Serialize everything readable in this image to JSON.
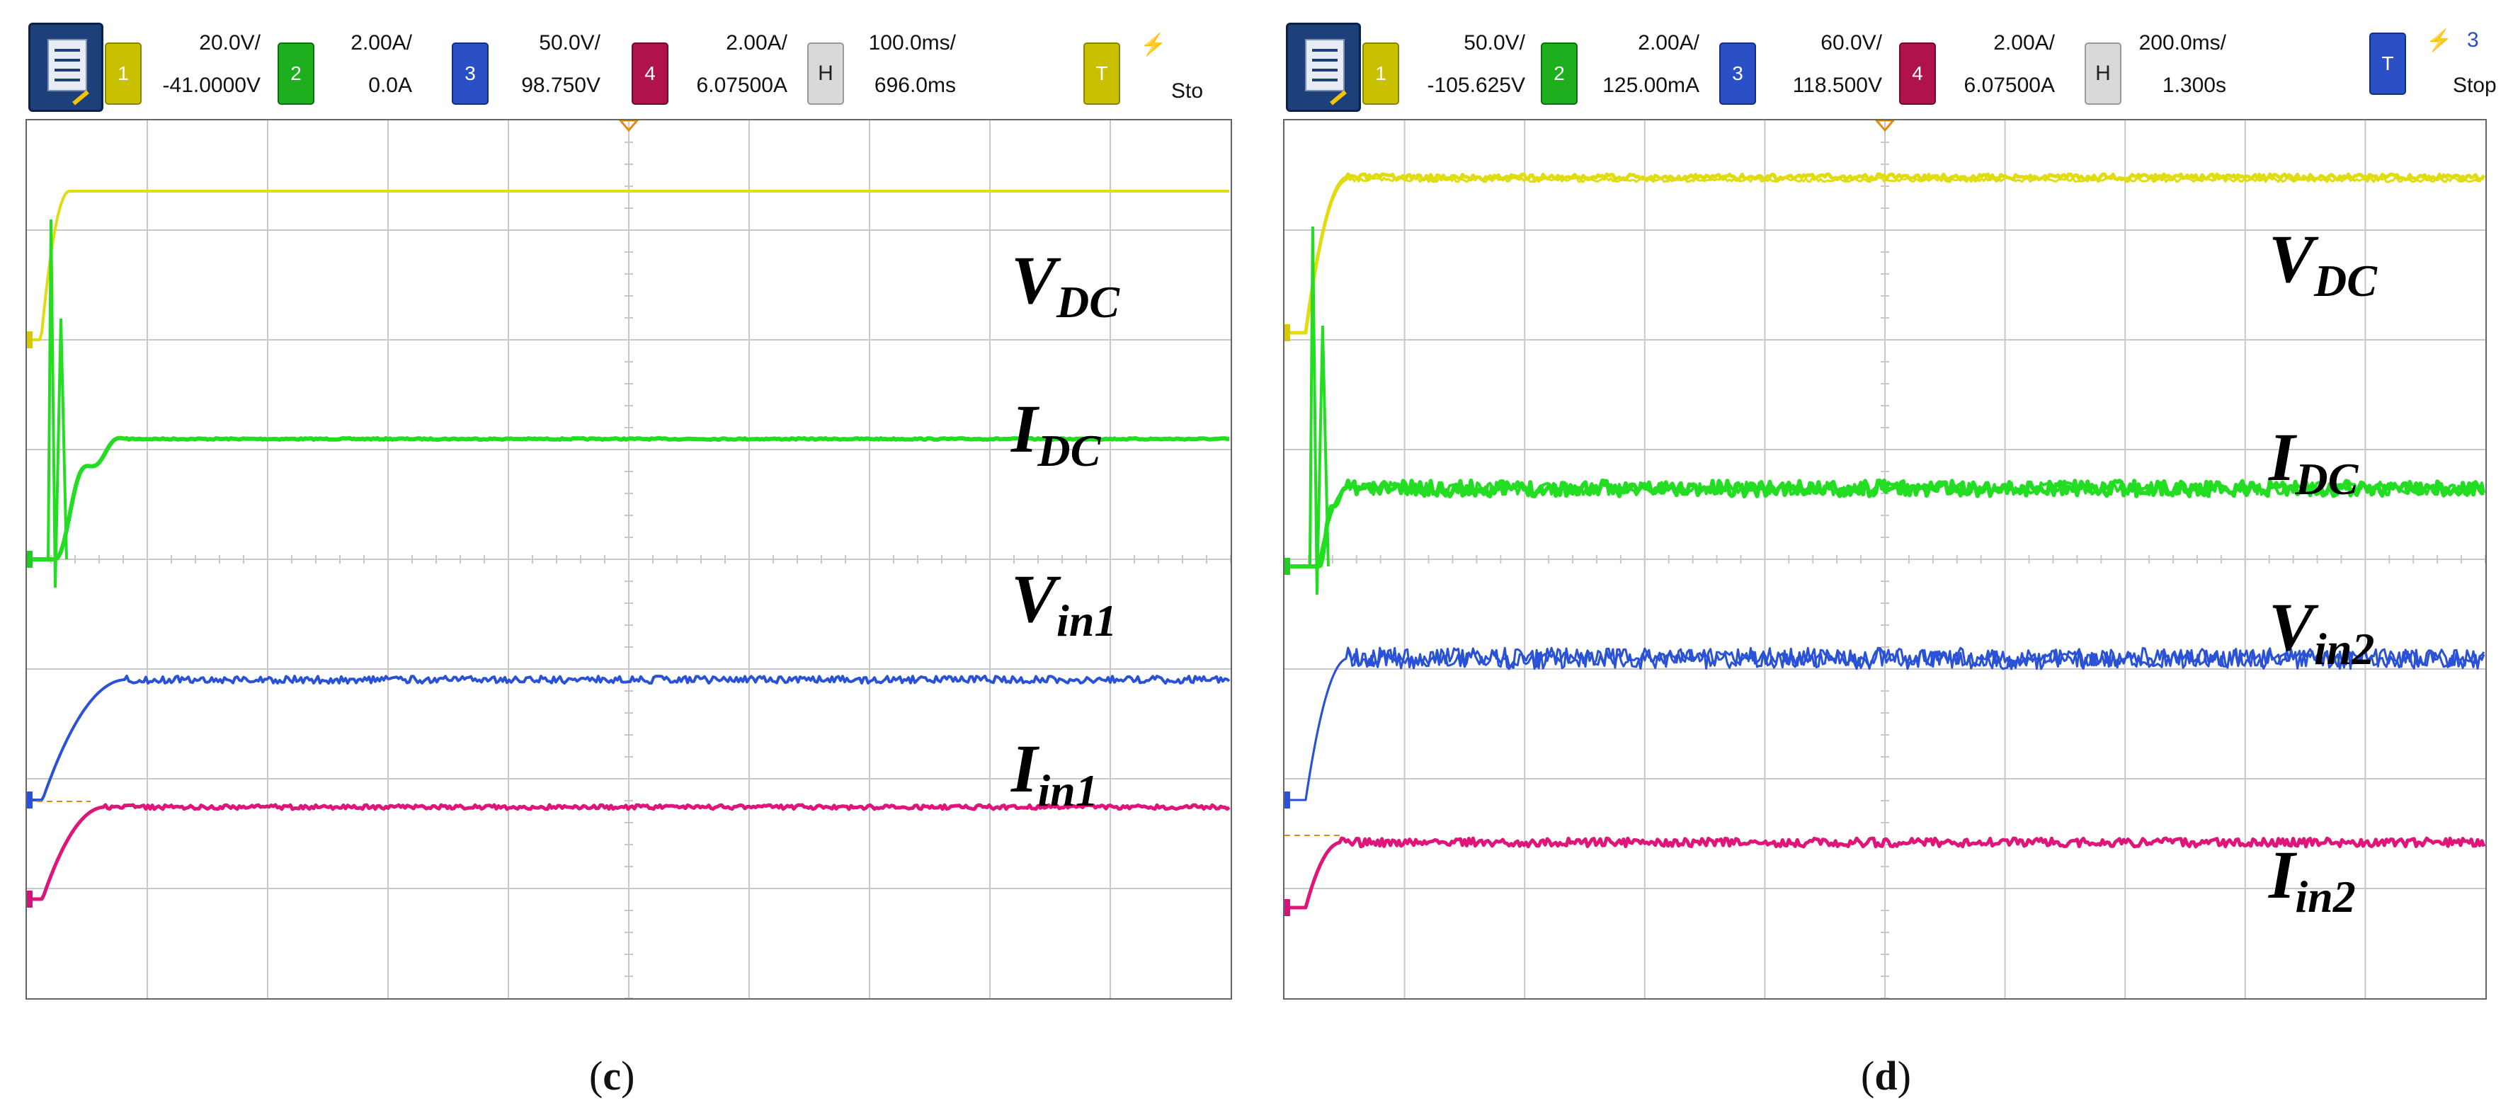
{
  "panels": [
    {
      "id": "c",
      "caption_letter": "c",
      "channels": [
        {
          "num": "1",
          "line1": "20.0V/",
          "line2": "-41.0000V",
          "color": "#c8c000"
        },
        {
          "num": "2",
          "line1": "2.00A/",
          "line2": "0.0A",
          "color": "#1eae1e"
        },
        {
          "num": "3",
          "line1": "50.0V/",
          "line2": "98.750V",
          "color": "#2b4fc4"
        },
        {
          "num": "4",
          "line1": "2.00A/",
          "line2": "6.07500A",
          "color": "#b0124e"
        }
      ],
      "timebase": {
        "label": "H",
        "line1": "100.0ms/",
        "line2": "696.0ms"
      },
      "trigger": {
        "label": "T",
        "color": "#c8c000",
        "status": "Sto"
      },
      "waveform_labels": [
        {
          "main": "V",
          "sub": "DC",
          "color": "#111111"
        },
        {
          "main": "I",
          "sub": "DC",
          "color": "#111111"
        },
        {
          "main": "V",
          "sub": "in1",
          "color": "#111111"
        },
        {
          "main": "I",
          "sub": "in1",
          "color": "#111111"
        }
      ]
    },
    {
      "id": "d",
      "caption_letter": "d",
      "channels": [
        {
          "num": "1",
          "line1": "50.0V/",
          "line2": "-105.625V",
          "color": "#c8c000"
        },
        {
          "num": "2",
          "line1": "2.00A/",
          "line2": "125.00mA",
          "color": "#1eae1e"
        },
        {
          "num": "3",
          "line1": "60.0V/",
          "line2": "118.500V",
          "color": "#2b4fc4"
        },
        {
          "num": "4",
          "line1": "2.00A/",
          "line2": "6.07500A",
          "color": "#b0124e"
        }
      ],
      "timebase": {
        "label": "H",
        "line1": "200.0ms/",
        "line2": "1.300s"
      },
      "trigger": {
        "label": "T",
        "color": "#2b4fc4",
        "status": "Stop",
        "channel": "3"
      },
      "waveform_labels": [
        {
          "main": "V",
          "sub": "DC",
          "color": "#111111"
        },
        {
          "main": "I",
          "sub": "DC",
          "color": "#111111"
        },
        {
          "main": "V",
          "sub": "in2",
          "color": "#111111"
        },
        {
          "main": "I",
          "sub": "in2",
          "color": "#111111"
        }
      ]
    }
  ],
  "colors": {
    "ch1_trace": "#e0dc10",
    "ch2_trace": "#22dd22",
    "ch3_trace": "#2a52d8",
    "ch4_trace": "#e0157a",
    "grid": "#c8c8c8",
    "marker": "#e08a10"
  }
}
